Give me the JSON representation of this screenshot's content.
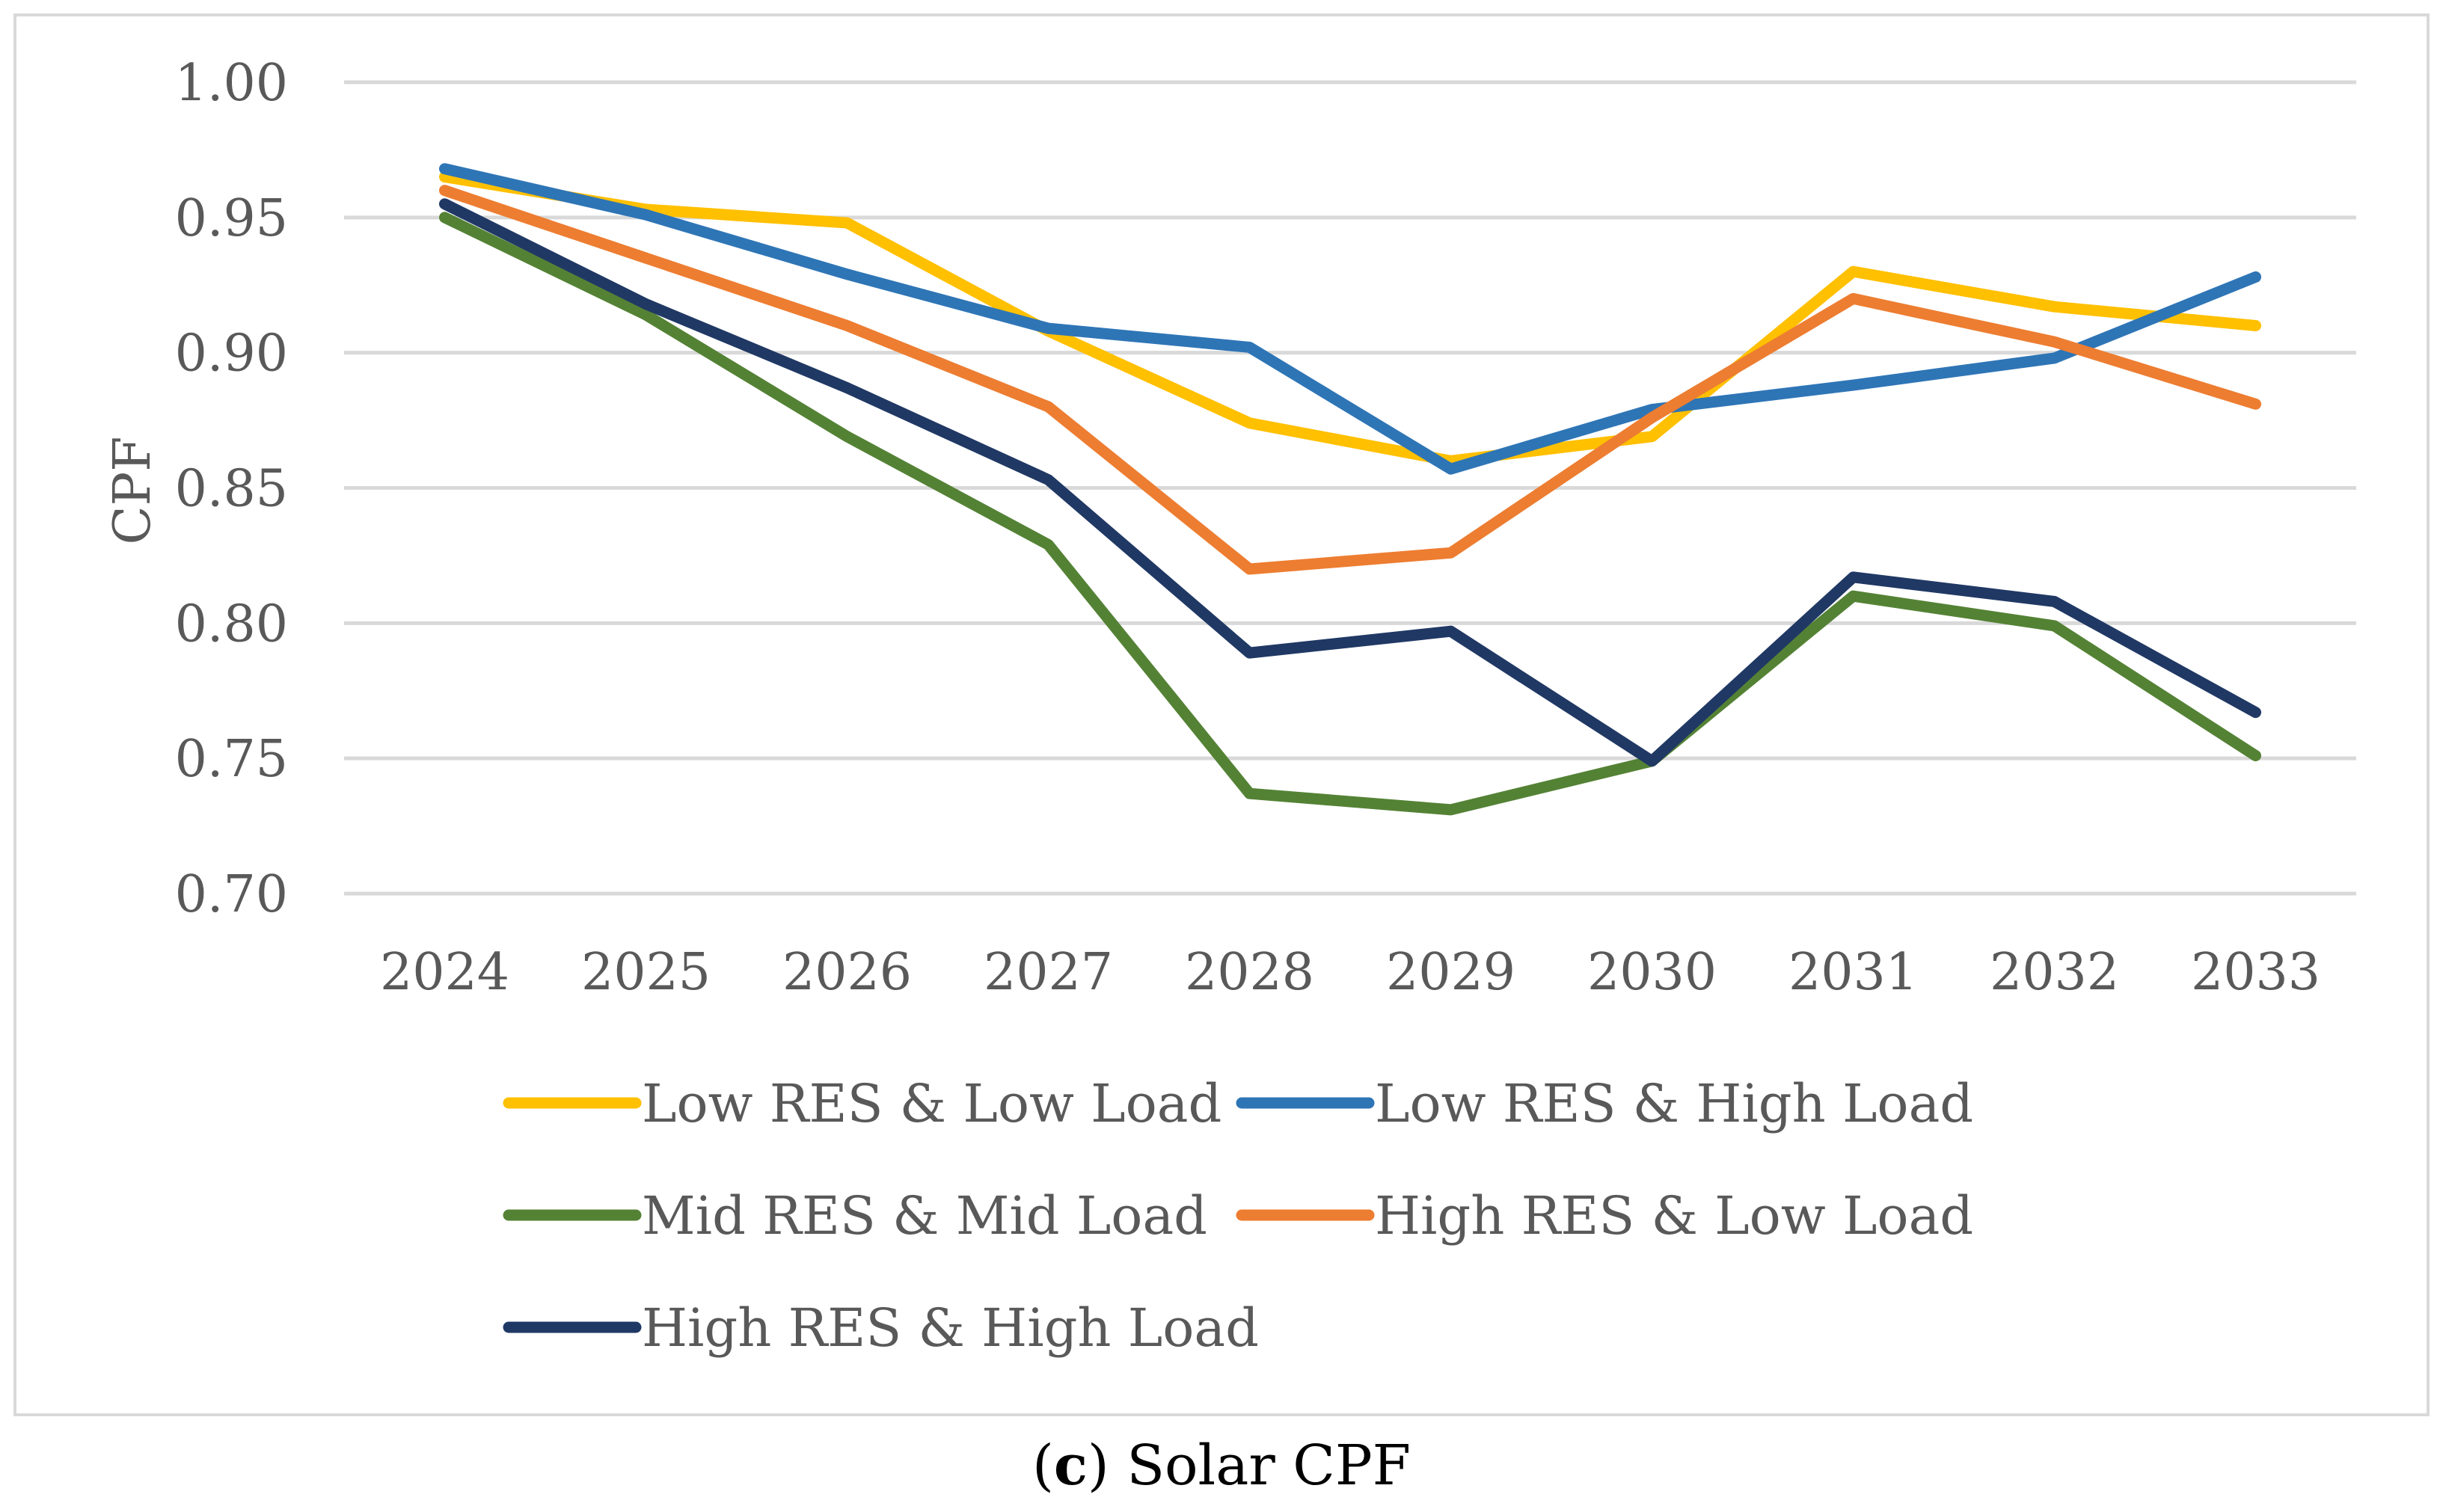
{
  "caption": {
    "open_paren": "(",
    "letter": "c",
    "rest": ") Solar CPF"
  },
  "chart_data": {
    "type": "line",
    "title": "",
    "xlabel": "",
    "ylabel": "CPF",
    "x": [
      "2024",
      "2025",
      "2026",
      "2027",
      "2028",
      "2029",
      "2030",
      "2031",
      "2032",
      "2033"
    ],
    "ylim": [
      0.7,
      1.0
    ],
    "yticks": [
      "0.70",
      "0.75",
      "0.80",
      "0.85",
      "0.90",
      "0.95",
      "1.00"
    ],
    "grid": true,
    "legend_placement": "bottom",
    "series": [
      {
        "name": "Low RES & Low Load",
        "color": "#FFC000",
        "values": [
          0.965,
          0.953,
          0.948,
          0.908,
          0.874,
          0.86,
          0.869,
          0.93,
          0.917,
          0.91
        ]
      },
      {
        "name": "Low RES & High Load",
        "color": "#2E75B6",
        "values": [
          0.968,
          0.951,
          0.929,
          0.909,
          0.902,
          0.857,
          0.879,
          0.888,
          0.898,
          0.928
        ]
      },
      {
        "name": "Mid RES & Mid Load",
        "color": "#548235",
        "values": [
          0.95,
          0.914,
          0.869,
          0.829,
          0.737,
          0.731,
          0.749,
          0.81,
          0.799,
          0.751
        ]
      },
      {
        "name": "High RES & Low Load",
        "color": "#ED7D31",
        "values": [
          0.96,
          0.935,
          0.91,
          0.88,
          0.82,
          0.826,
          0.876,
          0.92,
          0.904,
          0.881
        ]
      },
      {
        "name": "High RES & High Load",
        "color": "#203864",
        "values": [
          0.955,
          0.918,
          0.887,
          0.853,
          0.789,
          0.797,
          0.749,
          0.817,
          0.808,
          0.767
        ]
      }
    ]
  }
}
